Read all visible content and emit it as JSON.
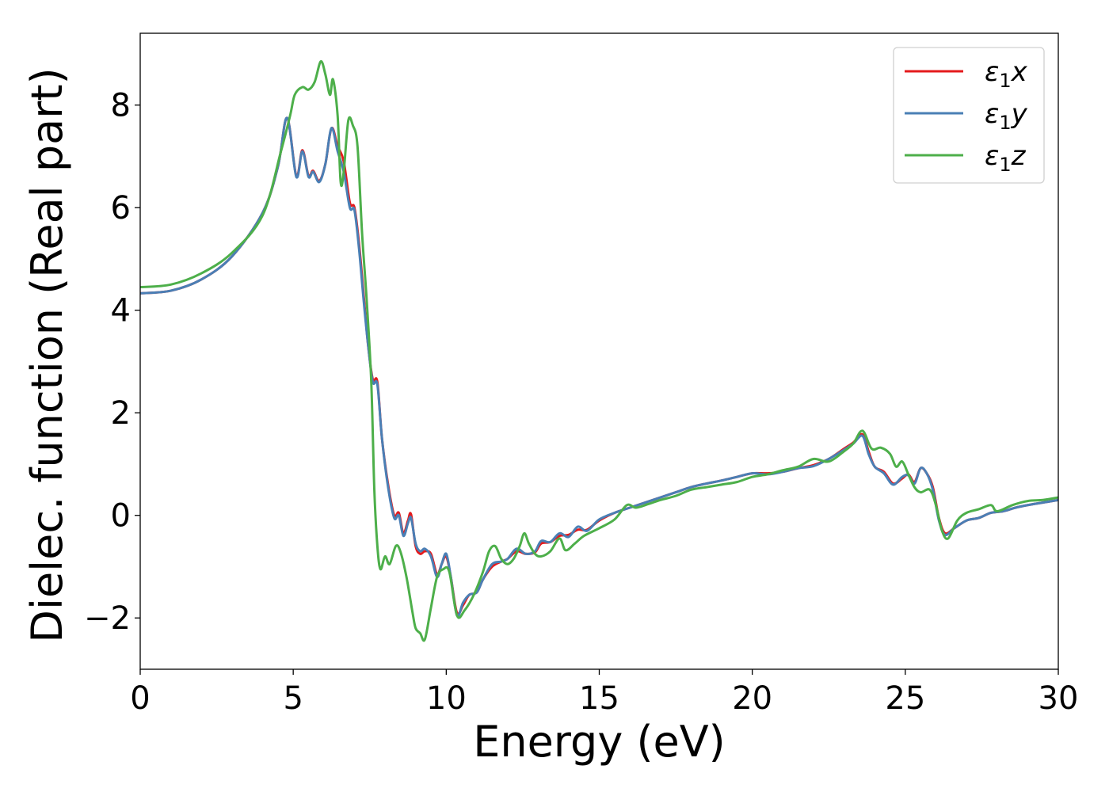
{
  "chart_data": {
    "type": "line",
    "xlabel": "Energy (eV)",
    "ylabel": "Dielec. function (Real part)",
    "xlim": [
      0,
      30
    ],
    "ylim": [
      -3,
      9.4
    ],
    "xticks": [
      0,
      5,
      10,
      15,
      20,
      25,
      30
    ],
    "xtick_labels": [
      "0",
      "5",
      "10",
      "15",
      "20",
      "25",
      "30"
    ],
    "yticks": [
      -2,
      0,
      2,
      4,
      6,
      8
    ],
    "ytick_labels": [
      "−2",
      "0",
      "2",
      "4",
      "6",
      "8"
    ],
    "grid": false,
    "legend_position": "top-right",
    "series": [
      {
        "name": "ε₁x",
        "legend_label": "ε",
        "legend_sub": "1",
        "legend_var": "x",
        "color": "#e41a1c",
        "points": [
          [
            0,
            4.33
          ],
          [
            1,
            4.38
          ],
          [
            2,
            4.6
          ],
          [
            3,
            5.05
          ],
          [
            4,
            5.9
          ],
          [
            4.5,
            6.8
          ],
          [
            4.8,
            7.75
          ],
          [
            5.1,
            6.62
          ],
          [
            5.3,
            7.12
          ],
          [
            5.5,
            6.62
          ],
          [
            5.65,
            6.72
          ],
          [
            5.85,
            6.52
          ],
          [
            6.05,
            6.85
          ],
          [
            6.25,
            7.55
          ],
          [
            6.45,
            7.2
          ],
          [
            6.65,
            6.9
          ],
          [
            6.85,
            6.1
          ],
          [
            7.0,
            6.0
          ],
          [
            7.15,
            5.3
          ],
          [
            7.3,
            4.3
          ],
          [
            7.45,
            3.3
          ],
          [
            7.6,
            2.65
          ],
          [
            7.75,
            2.6
          ],
          [
            7.9,
            1.5
          ],
          [
            8.1,
            0.6
          ],
          [
            8.3,
            0.0
          ],
          [
            8.45,
            0.05
          ],
          [
            8.6,
            -0.35
          ],
          [
            8.75,
            -0.1
          ],
          [
            8.85,
            0.02
          ],
          [
            9.0,
            -0.6
          ],
          [
            9.15,
            -0.75
          ],
          [
            9.3,
            -0.7
          ],
          [
            9.5,
            -0.75
          ],
          [
            9.7,
            -1.15
          ],
          [
            9.85,
            -0.95
          ],
          [
            10.0,
            -0.8
          ],
          [
            10.15,
            -1.2
          ],
          [
            10.35,
            -1.9
          ],
          [
            10.55,
            -1.75
          ],
          [
            10.75,
            -1.55
          ],
          [
            11.0,
            -1.5
          ],
          [
            11.2,
            -1.25
          ],
          [
            11.5,
            -1.0
          ],
          [
            11.8,
            -0.9
          ],
          [
            12.0,
            -0.85
          ],
          [
            12.3,
            -0.7
          ],
          [
            12.6,
            -0.75
          ],
          [
            12.9,
            -0.72
          ],
          [
            13.1,
            -0.55
          ],
          [
            13.4,
            -0.52
          ],
          [
            13.7,
            -0.4
          ],
          [
            14.0,
            -0.38
          ],
          [
            14.3,
            -0.28
          ],
          [
            14.6,
            -0.28
          ],
          [
            15.0,
            -0.1
          ],
          [
            15.5,
            0.05
          ],
          [
            16.0,
            0.15
          ],
          [
            16.5,
            0.25
          ],
          [
            17.0,
            0.35
          ],
          [
            17.5,
            0.45
          ],
          [
            18.0,
            0.55
          ],
          [
            18.5,
            0.62
          ],
          [
            19.0,
            0.68
          ],
          [
            19.5,
            0.75
          ],
          [
            20.0,
            0.82
          ],
          [
            20.5,
            0.82
          ],
          [
            21.0,
            0.85
          ],
          [
            21.5,
            0.92
          ],
          [
            22.0,
            0.98
          ],
          [
            22.5,
            1.1
          ],
          [
            23.0,
            1.3
          ],
          [
            23.3,
            1.42
          ],
          [
            23.6,
            1.58
          ],
          [
            23.8,
            1.25
          ],
          [
            24.0,
            0.95
          ],
          [
            24.3,
            0.85
          ],
          [
            24.6,
            0.62
          ],
          [
            24.9,
            0.72
          ],
          [
            25.1,
            0.8
          ],
          [
            25.3,
            0.65
          ],
          [
            25.5,
            0.92
          ],
          [
            25.7,
            0.82
          ],
          [
            25.9,
            0.55
          ],
          [
            26.1,
            -0.05
          ],
          [
            26.3,
            -0.35
          ],
          [
            26.6,
            -0.25
          ],
          [
            27.0,
            -0.1
          ],
          [
            27.4,
            -0.05
          ],
          [
            27.8,
            0.05
          ],
          [
            28.2,
            0.08
          ],
          [
            28.6,
            0.15
          ],
          [
            29.0,
            0.2
          ],
          [
            29.5,
            0.25
          ],
          [
            30,
            0.3
          ]
        ]
      },
      {
        "name": "ε₁y",
        "legend_label": "ε",
        "legend_sub": "1",
        "legend_var": "y",
        "color": "#4a7fb5",
        "points": [
          [
            0,
            4.33
          ],
          [
            1,
            4.38
          ],
          [
            2,
            4.6
          ],
          [
            3,
            5.05
          ],
          [
            4,
            5.9
          ],
          [
            4.5,
            6.8
          ],
          [
            4.8,
            7.75
          ],
          [
            5.1,
            6.6
          ],
          [
            5.3,
            7.1
          ],
          [
            5.5,
            6.6
          ],
          [
            5.65,
            6.7
          ],
          [
            5.85,
            6.5
          ],
          [
            6.05,
            6.85
          ],
          [
            6.25,
            7.55
          ],
          [
            6.45,
            7.1
          ],
          [
            6.65,
            6.7
          ],
          [
            6.85,
            6.0
          ],
          [
            7.0,
            5.95
          ],
          [
            7.15,
            5.2
          ],
          [
            7.3,
            4.2
          ],
          [
            7.45,
            3.3
          ],
          [
            7.6,
            2.6
          ],
          [
            7.75,
            2.55
          ],
          [
            7.9,
            1.5
          ],
          [
            8.1,
            0.55
          ],
          [
            8.3,
            -0.05
          ],
          [
            8.45,
            0.0
          ],
          [
            8.6,
            -0.4
          ],
          [
            8.75,
            -0.15
          ],
          [
            8.85,
            -0.05
          ],
          [
            9.0,
            -0.55
          ],
          [
            9.15,
            -0.7
          ],
          [
            9.3,
            -0.65
          ],
          [
            9.5,
            -0.8
          ],
          [
            9.7,
            -1.2
          ],
          [
            9.85,
            -0.95
          ],
          [
            10.0,
            -0.75
          ],
          [
            10.15,
            -1.2
          ],
          [
            10.35,
            -1.95
          ],
          [
            10.55,
            -1.7
          ],
          [
            10.75,
            -1.55
          ],
          [
            11.0,
            -1.5
          ],
          [
            11.2,
            -1.25
          ],
          [
            11.5,
            -0.95
          ],
          [
            11.8,
            -0.9
          ],
          [
            12.0,
            -0.85
          ],
          [
            12.3,
            -0.65
          ],
          [
            12.6,
            -0.75
          ],
          [
            12.9,
            -0.7
          ],
          [
            13.1,
            -0.5
          ],
          [
            13.4,
            -0.52
          ],
          [
            13.7,
            -0.35
          ],
          [
            14.0,
            -0.42
          ],
          [
            14.3,
            -0.22
          ],
          [
            14.6,
            -0.3
          ],
          [
            15.0,
            -0.08
          ],
          [
            15.5,
            0.05
          ],
          [
            16.0,
            0.15
          ],
          [
            16.5,
            0.25
          ],
          [
            17.0,
            0.35
          ],
          [
            17.5,
            0.45
          ],
          [
            18.0,
            0.55
          ],
          [
            18.5,
            0.62
          ],
          [
            19.0,
            0.68
          ],
          [
            19.5,
            0.75
          ],
          [
            20.0,
            0.82
          ],
          [
            20.5,
            0.8
          ],
          [
            21.0,
            0.85
          ],
          [
            21.5,
            0.92
          ],
          [
            22.0,
            0.96
          ],
          [
            22.5,
            1.1
          ],
          [
            23.0,
            1.28
          ],
          [
            23.3,
            1.4
          ],
          [
            23.6,
            1.55
          ],
          [
            23.8,
            1.2
          ],
          [
            24.0,
            0.95
          ],
          [
            24.3,
            0.82
          ],
          [
            24.6,
            0.6
          ],
          [
            24.9,
            0.75
          ],
          [
            25.1,
            0.78
          ],
          [
            25.3,
            0.62
          ],
          [
            25.5,
            0.92
          ],
          [
            25.7,
            0.82
          ],
          [
            25.9,
            0.5
          ],
          [
            26.1,
            -0.1
          ],
          [
            26.3,
            -0.38
          ],
          [
            26.6,
            -0.25
          ],
          [
            27.0,
            -0.1
          ],
          [
            27.4,
            -0.05
          ],
          [
            27.8,
            0.05
          ],
          [
            28.2,
            0.08
          ],
          [
            28.6,
            0.15
          ],
          [
            29.0,
            0.2
          ],
          [
            29.5,
            0.25
          ],
          [
            30,
            0.3
          ]
        ]
      },
      {
        "name": "ε₁z",
        "legend_label": "ε",
        "legend_sub": "1",
        "legend_var": "z",
        "color": "#4daf4a",
        "points": [
          [
            0,
            4.45
          ],
          [
            1,
            4.5
          ],
          [
            2,
            4.72
          ],
          [
            3,
            5.12
          ],
          [
            4,
            5.85
          ],
          [
            4.6,
            7.1
          ],
          [
            4.9,
            7.8
          ],
          [
            5.05,
            8.2
          ],
          [
            5.3,
            8.35
          ],
          [
            5.5,
            8.3
          ],
          [
            5.7,
            8.45
          ],
          [
            5.9,
            8.85
          ],
          [
            6.05,
            8.6
          ],
          [
            6.2,
            8.2
          ],
          [
            6.3,
            8.5
          ],
          [
            6.45,
            7.8
          ],
          [
            6.55,
            6.5
          ],
          [
            6.65,
            6.7
          ],
          [
            6.8,
            7.7
          ],
          [
            6.95,
            7.6
          ],
          [
            7.1,
            7.2
          ],
          [
            7.25,
            5.5
          ],
          [
            7.4,
            4.2
          ],
          [
            7.55,
            2.6
          ],
          [
            7.65,
            0.5
          ],
          [
            7.75,
            -0.6
          ],
          [
            7.85,
            -1.05
          ],
          [
            8.0,
            -0.8
          ],
          [
            8.15,
            -0.95
          ],
          [
            8.35,
            -0.6
          ],
          [
            8.5,
            -0.7
          ],
          [
            8.7,
            -1.2
          ],
          [
            8.9,
            -1.9
          ],
          [
            9.0,
            -2.2
          ],
          [
            9.15,
            -2.3
          ],
          [
            9.3,
            -2.42
          ],
          [
            9.5,
            -1.8
          ],
          [
            9.7,
            -1.2
          ],
          [
            9.9,
            -1.05
          ],
          [
            10.1,
            -1.1
          ],
          [
            10.35,
            -1.95
          ],
          [
            10.6,
            -1.85
          ],
          [
            10.9,
            -1.55
          ],
          [
            11.2,
            -1.1
          ],
          [
            11.4,
            -0.7
          ],
          [
            11.6,
            -0.6
          ],
          [
            11.8,
            -0.85
          ],
          [
            12.0,
            -0.95
          ],
          [
            12.2,
            -0.85
          ],
          [
            12.4,
            -0.6
          ],
          [
            12.55,
            -0.35
          ],
          [
            12.7,
            -0.55
          ],
          [
            12.9,
            -0.75
          ],
          [
            13.1,
            -0.8
          ],
          [
            13.4,
            -0.7
          ],
          [
            13.7,
            -0.45
          ],
          [
            13.9,
            -0.68
          ],
          [
            14.2,
            -0.55
          ],
          [
            14.5,
            -0.4
          ],
          [
            15.0,
            -0.25
          ],
          [
            15.5,
            -0.08
          ],
          [
            15.9,
            0.2
          ],
          [
            16.2,
            0.15
          ],
          [
            16.6,
            0.22
          ],
          [
            17.0,
            0.3
          ],
          [
            17.5,
            0.38
          ],
          [
            18.0,
            0.5
          ],
          [
            18.5,
            0.55
          ],
          [
            19.0,
            0.6
          ],
          [
            19.5,
            0.65
          ],
          [
            20.0,
            0.75
          ],
          [
            20.5,
            0.8
          ],
          [
            21.0,
            0.88
          ],
          [
            21.5,
            0.95
          ],
          [
            22.0,
            1.1
          ],
          [
            22.5,
            1.05
          ],
          [
            23.0,
            1.25
          ],
          [
            23.3,
            1.4
          ],
          [
            23.6,
            1.65
          ],
          [
            23.9,
            1.3
          ],
          [
            24.2,
            1.32
          ],
          [
            24.5,
            1.2
          ],
          [
            24.7,
            0.95
          ],
          [
            24.9,
            1.05
          ],
          [
            25.1,
            0.8
          ],
          [
            25.3,
            0.55
          ],
          [
            25.5,
            0.45
          ],
          [
            25.8,
            0.5
          ],
          [
            26.0,
            0.2
          ],
          [
            26.2,
            -0.3
          ],
          [
            26.4,
            -0.45
          ],
          [
            26.7,
            -0.1
          ],
          [
            27.0,
            0.05
          ],
          [
            27.4,
            0.12
          ],
          [
            27.8,
            0.2
          ],
          [
            28.0,
            0.08
          ],
          [
            28.5,
            0.2
          ],
          [
            29.0,
            0.28
          ],
          [
            29.5,
            0.3
          ],
          [
            30,
            0.35
          ]
        ]
      }
    ]
  }
}
